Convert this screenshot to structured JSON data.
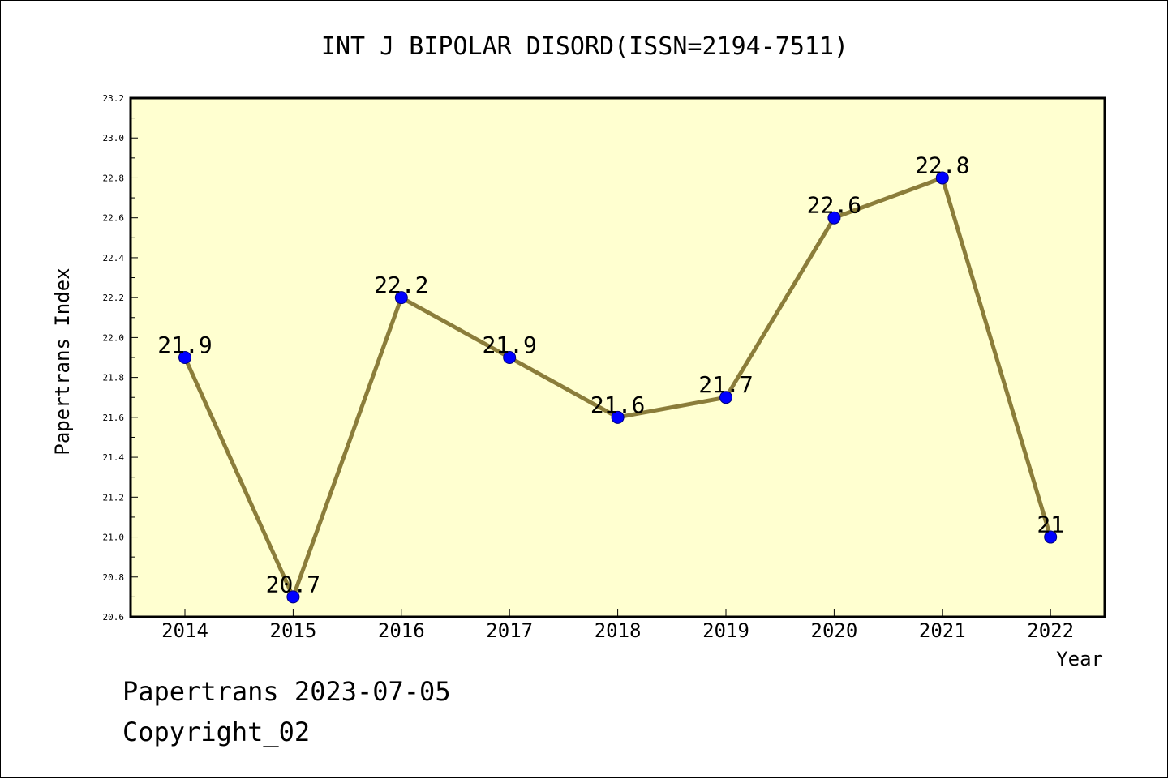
{
  "chart_data": {
    "type": "line",
    "title": "INT J BIPOLAR DISORD(ISSN=2194-7511)",
    "xlabel": "Year",
    "ylabel": "Papertrans Index",
    "categories": [
      "2014",
      "2015",
      "2016",
      "2017",
      "2018",
      "2019",
      "2020",
      "2021",
      "2022"
    ],
    "values": [
      21.9,
      20.7,
      22.2,
      21.9,
      21.6,
      21.7,
      22.6,
      22.8,
      21.0
    ],
    "data_labels": [
      "21.9",
      "20.7",
      "22.2",
      "21.9",
      "21.6",
      "21.7",
      "22.6",
      "22.8",
      "21"
    ],
    "ylim": [
      20.6,
      23.2
    ],
    "yticks": [
      "20.6",
      "20.8",
      "21.0",
      "21.2",
      "21.4",
      "21.6",
      "21.8",
      "22.0",
      "22.2",
      "22.4",
      "22.6",
      "22.8",
      "23.0",
      "23.2"
    ],
    "grid": false,
    "legend": "none",
    "colors": {
      "plot_background": "#ffffd0",
      "line": "#8b7d3a",
      "marker": "#0000ff",
      "frame": "#000000"
    }
  },
  "footer": {
    "line1": "Papertrans 2023-07-05",
    "line2": "Copyright_02"
  }
}
